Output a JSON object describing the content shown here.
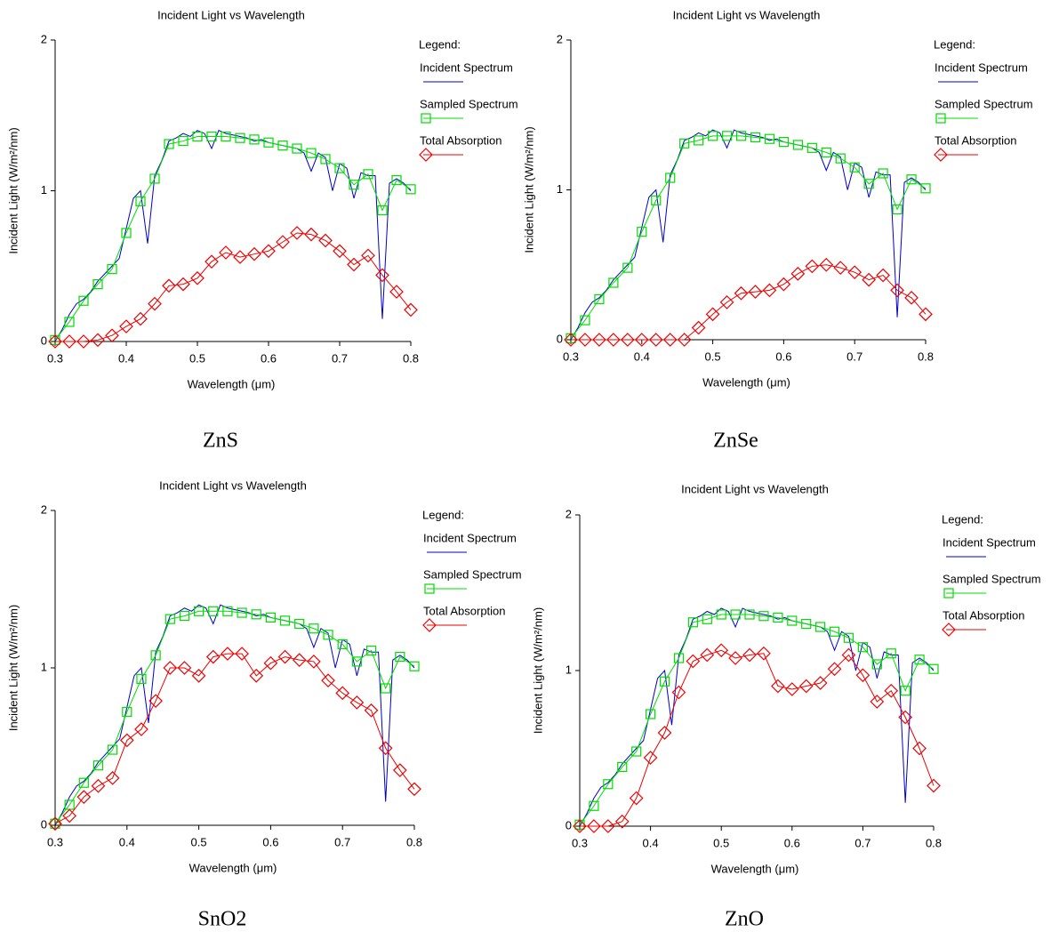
{
  "chart_data": [
    {
      "type": "line",
      "title": "Incident Light vs Wavelength",
      "xlabel": "Wavelength (μm)",
      "ylabel": "Incident Light (W/m²/nm)",
      "legend_title": "Legend:",
      "caption": "ZnS",
      "xlim": [
        0.3,
        0.8
      ],
      "xticks": [
        0.3,
        0.4,
        0.5,
        0.6,
        0.7,
        0.8
      ],
      "ylim": [
        0,
        2
      ],
      "yticks": [
        0,
        1,
        2
      ],
      "series": [
        {
          "name": "Incident Spectrum",
          "color": "#0000cc",
          "marker": "none",
          "x": [
            0.3,
            0.31,
            0.32,
            0.33,
            0.34,
            0.35,
            0.36,
            0.37,
            0.38,
            0.39,
            0.4,
            0.41,
            0.42,
            0.43,
            0.44,
            0.45,
            0.46,
            0.47,
            0.48,
            0.49,
            0.5,
            0.51,
            0.52,
            0.53,
            0.54,
            0.55,
            0.56,
            0.57,
            0.58,
            0.59,
            0.6,
            0.61,
            0.62,
            0.63,
            0.64,
            0.65,
            0.66,
            0.67,
            0.68,
            0.69,
            0.7,
            0.71,
            0.72,
            0.73,
            0.74,
            0.75,
            0.76,
            0.77,
            0.78,
            0.79,
            0.8
          ],
          "values": [
            0.0,
            0.08,
            0.18,
            0.25,
            0.28,
            0.33,
            0.4,
            0.45,
            0.5,
            0.55,
            0.75,
            0.95,
            1.0,
            0.65,
            1.1,
            1.2,
            1.33,
            1.35,
            1.38,
            1.36,
            1.4,
            1.38,
            1.28,
            1.4,
            1.38,
            1.37,
            1.36,
            1.35,
            1.33,
            1.34,
            1.32,
            1.31,
            1.3,
            1.29,
            1.28,
            1.25,
            1.13,
            1.25,
            1.22,
            1.0,
            1.18,
            1.15,
            0.95,
            1.12,
            1.1,
            1.1,
            0.15,
            1.05,
            1.08,
            1.05,
            1.0
          ]
        },
        {
          "name": "Sampled Spectrum",
          "color": "#00dd00",
          "marker": "square",
          "x": [
            0.3,
            0.32,
            0.34,
            0.36,
            0.38,
            0.4,
            0.42,
            0.44,
            0.46,
            0.48,
            0.5,
            0.52,
            0.54,
            0.56,
            0.58,
            0.6,
            0.62,
            0.64,
            0.66,
            0.68,
            0.7,
            0.72,
            0.74,
            0.76,
            0.78,
            0.8
          ],
          "values": [
            0.01,
            0.13,
            0.27,
            0.38,
            0.48,
            0.72,
            0.93,
            1.08,
            1.31,
            1.33,
            1.36,
            1.36,
            1.36,
            1.35,
            1.34,
            1.32,
            1.3,
            1.28,
            1.25,
            1.21,
            1.15,
            1.04,
            1.11,
            0.87,
            1.07,
            1.01
          ]
        },
        {
          "name": "Total Absorption",
          "color": "#ee0000",
          "marker": "diamond",
          "x": [
            0.3,
            0.32,
            0.34,
            0.36,
            0.38,
            0.4,
            0.42,
            0.44,
            0.46,
            0.48,
            0.5,
            0.52,
            0.54,
            0.56,
            0.58,
            0.6,
            0.62,
            0.64,
            0.66,
            0.68,
            0.7,
            0.72,
            0.74,
            0.76,
            0.78,
            0.8
          ],
          "values": [
            0,
            0,
            0,
            0.01,
            0.04,
            0.1,
            0.15,
            0.25,
            0.37,
            0.38,
            0.42,
            0.53,
            0.59,
            0.56,
            0.58,
            0.6,
            0.66,
            0.72,
            0.71,
            0.67,
            0.6,
            0.51,
            0.57,
            0.44,
            0.33,
            0.21
          ]
        }
      ]
    },
    {
      "type": "line",
      "title": "Incident Light vs Wavelength",
      "xlabel": "Wavelength (μm)",
      "ylabel": "Incident Light (W/m²/nm)",
      "legend_title": "Legend:",
      "caption": "ZnSe",
      "xlim": [
        0.3,
        0.8
      ],
      "xticks": [
        0.3,
        0.4,
        0.5,
        0.6,
        0.7,
        0.8
      ],
      "ylim": [
        0,
        2
      ],
      "yticks": [
        0,
        1,
        2
      ],
      "series": [
        {
          "name": "Incident Spectrum",
          "color": "#0000cc",
          "marker": "none",
          "x": [
            0.3,
            0.31,
            0.32,
            0.33,
            0.34,
            0.35,
            0.36,
            0.37,
            0.38,
            0.39,
            0.4,
            0.41,
            0.42,
            0.43,
            0.44,
            0.45,
            0.46,
            0.47,
            0.48,
            0.49,
            0.5,
            0.51,
            0.52,
            0.53,
            0.54,
            0.55,
            0.56,
            0.57,
            0.58,
            0.59,
            0.6,
            0.61,
            0.62,
            0.63,
            0.64,
            0.65,
            0.66,
            0.67,
            0.68,
            0.69,
            0.7,
            0.71,
            0.72,
            0.73,
            0.74,
            0.75,
            0.76,
            0.77,
            0.78,
            0.79,
            0.8
          ],
          "values": [
            0.0,
            0.08,
            0.18,
            0.25,
            0.28,
            0.33,
            0.4,
            0.45,
            0.5,
            0.55,
            0.75,
            0.95,
            1.0,
            0.65,
            1.1,
            1.2,
            1.33,
            1.35,
            1.38,
            1.36,
            1.4,
            1.38,
            1.28,
            1.4,
            1.38,
            1.37,
            1.36,
            1.35,
            1.33,
            1.34,
            1.32,
            1.31,
            1.3,
            1.29,
            1.28,
            1.25,
            1.13,
            1.25,
            1.22,
            1.0,
            1.18,
            1.15,
            0.95,
            1.12,
            1.1,
            1.1,
            0.15,
            1.05,
            1.08,
            1.05,
            1.0
          ]
        },
        {
          "name": "Sampled Spectrum",
          "color": "#00dd00",
          "marker": "square",
          "x": [
            0.3,
            0.32,
            0.34,
            0.36,
            0.38,
            0.4,
            0.42,
            0.44,
            0.46,
            0.48,
            0.5,
            0.52,
            0.54,
            0.56,
            0.58,
            0.6,
            0.62,
            0.64,
            0.66,
            0.68,
            0.7,
            0.72,
            0.74,
            0.76,
            0.78,
            0.8
          ],
          "values": [
            0.01,
            0.13,
            0.27,
            0.38,
            0.48,
            0.72,
            0.93,
            1.08,
            1.31,
            1.33,
            1.36,
            1.36,
            1.36,
            1.35,
            1.34,
            1.32,
            1.3,
            1.28,
            1.25,
            1.21,
            1.15,
            1.04,
            1.11,
            0.87,
            1.07,
            1.01
          ]
        },
        {
          "name": "Total Absorption",
          "color": "#ee0000",
          "marker": "diamond",
          "x": [
            0.3,
            0.32,
            0.34,
            0.36,
            0.38,
            0.4,
            0.42,
            0.44,
            0.46,
            0.48,
            0.5,
            0.52,
            0.54,
            0.56,
            0.58,
            0.6,
            0.62,
            0.64,
            0.66,
            0.68,
            0.7,
            0.72,
            0.74,
            0.76,
            0.78,
            0.8
          ],
          "values": [
            0,
            0,
            0,
            0,
            0,
            0,
            0,
            0,
            0,
            0.08,
            0.17,
            0.25,
            0.31,
            0.32,
            0.33,
            0.37,
            0.44,
            0.49,
            0.5,
            0.48,
            0.45,
            0.4,
            0.43,
            0.33,
            0.28,
            0.17
          ]
        }
      ]
    },
    {
      "type": "line",
      "title": "Incident Light vs Wavelength",
      "xlabel": "Wavelength (μm)",
      "ylabel": "Incident Light (W/m²/nm)",
      "legend_title": "Legend:",
      "caption": "SnO2",
      "xlim": [
        0.3,
        0.8
      ],
      "xticks": [
        0.3,
        0.4,
        0.5,
        0.6,
        0.7,
        0.8
      ],
      "ylim": [
        0,
        2
      ],
      "yticks": [
        0,
        1,
        2
      ],
      "series": [
        {
          "name": "Incident Spectrum",
          "color": "#0000cc",
          "marker": "none",
          "x": [
            0.3,
            0.31,
            0.32,
            0.33,
            0.34,
            0.35,
            0.36,
            0.37,
            0.38,
            0.39,
            0.4,
            0.41,
            0.42,
            0.43,
            0.44,
            0.45,
            0.46,
            0.47,
            0.48,
            0.49,
            0.5,
            0.51,
            0.52,
            0.53,
            0.54,
            0.55,
            0.56,
            0.57,
            0.58,
            0.59,
            0.6,
            0.61,
            0.62,
            0.63,
            0.64,
            0.65,
            0.66,
            0.67,
            0.68,
            0.69,
            0.7,
            0.71,
            0.72,
            0.73,
            0.74,
            0.75,
            0.76,
            0.77,
            0.78,
            0.79,
            0.8
          ],
          "values": [
            0.0,
            0.08,
            0.18,
            0.25,
            0.28,
            0.33,
            0.4,
            0.45,
            0.5,
            0.55,
            0.75,
            0.95,
            1.0,
            0.65,
            1.1,
            1.2,
            1.33,
            1.35,
            1.38,
            1.36,
            1.4,
            1.38,
            1.28,
            1.4,
            1.38,
            1.37,
            1.36,
            1.35,
            1.33,
            1.34,
            1.32,
            1.31,
            1.3,
            1.29,
            1.28,
            1.25,
            1.13,
            1.25,
            1.22,
            1.0,
            1.18,
            1.15,
            0.95,
            1.12,
            1.1,
            1.1,
            0.15,
            1.05,
            1.08,
            1.05,
            1.0
          ]
        },
        {
          "name": "Sampled Spectrum",
          "color": "#00dd00",
          "marker": "square",
          "x": [
            0.3,
            0.32,
            0.34,
            0.36,
            0.38,
            0.4,
            0.42,
            0.44,
            0.46,
            0.48,
            0.5,
            0.52,
            0.54,
            0.56,
            0.58,
            0.6,
            0.62,
            0.64,
            0.66,
            0.68,
            0.7,
            0.72,
            0.74,
            0.76,
            0.78,
            0.8
          ],
          "values": [
            0.01,
            0.13,
            0.27,
            0.38,
            0.48,
            0.72,
            0.93,
            1.08,
            1.31,
            1.33,
            1.36,
            1.36,
            1.36,
            1.35,
            1.34,
            1.32,
            1.3,
            1.28,
            1.25,
            1.21,
            1.15,
            1.04,
            1.11,
            0.87,
            1.07,
            1.01
          ]
        },
        {
          "name": "Total Absorption",
          "color": "#ee0000",
          "marker": "diamond",
          "x": [
            0.3,
            0.32,
            0.34,
            0.36,
            0.38,
            0.4,
            0.42,
            0.44,
            0.46,
            0.48,
            0.5,
            0.52,
            0.54,
            0.56,
            0.58,
            0.6,
            0.62,
            0.64,
            0.66,
            0.68,
            0.7,
            0.72,
            0.74,
            0.76,
            0.78,
            0.8
          ],
          "values": [
            0.01,
            0.06,
            0.18,
            0.25,
            0.3,
            0.54,
            0.61,
            0.79,
            1.0,
            1.0,
            0.95,
            1.07,
            1.09,
            1.09,
            0.95,
            1.03,
            1.07,
            1.05,
            1.04,
            0.92,
            0.84,
            0.78,
            0.73,
            0.49,
            0.35,
            0.23
          ]
        }
      ]
    },
    {
      "type": "line",
      "title": "Incident Light vs Wavelength",
      "xlabel": "Wavelength (μm)",
      "ylabel": "Incident Light (W/m²/nm)",
      "legend_title": "Legend:",
      "caption": "ZnO",
      "xlim": [
        0.3,
        0.8
      ],
      "xticks": [
        0.3,
        0.4,
        0.5,
        0.6,
        0.7,
        0.8
      ],
      "ylim": [
        0,
        2
      ],
      "yticks": [
        0,
        1,
        2
      ],
      "series": [
        {
          "name": "Incident Spectrum",
          "color": "#0000cc",
          "marker": "none",
          "x": [
            0.3,
            0.31,
            0.32,
            0.33,
            0.34,
            0.35,
            0.36,
            0.37,
            0.38,
            0.39,
            0.4,
            0.41,
            0.42,
            0.43,
            0.44,
            0.45,
            0.46,
            0.47,
            0.48,
            0.49,
            0.5,
            0.51,
            0.52,
            0.53,
            0.54,
            0.55,
            0.56,
            0.57,
            0.58,
            0.59,
            0.6,
            0.61,
            0.62,
            0.63,
            0.64,
            0.65,
            0.66,
            0.67,
            0.68,
            0.69,
            0.7,
            0.71,
            0.72,
            0.73,
            0.74,
            0.75,
            0.76,
            0.77,
            0.78,
            0.79,
            0.8
          ],
          "values": [
            0.0,
            0.08,
            0.18,
            0.25,
            0.28,
            0.33,
            0.4,
            0.45,
            0.5,
            0.55,
            0.75,
            0.95,
            1.0,
            0.65,
            1.1,
            1.2,
            1.33,
            1.35,
            1.38,
            1.36,
            1.4,
            1.38,
            1.28,
            1.4,
            1.38,
            1.37,
            1.36,
            1.35,
            1.33,
            1.34,
            1.32,
            1.31,
            1.3,
            1.29,
            1.28,
            1.25,
            1.13,
            1.25,
            1.22,
            1.0,
            1.18,
            1.15,
            0.95,
            1.12,
            1.1,
            1.1,
            0.15,
            1.05,
            1.08,
            1.05,
            1.0
          ]
        },
        {
          "name": "Sampled Spectrum",
          "color": "#00dd00",
          "marker": "square",
          "x": [
            0.3,
            0.32,
            0.34,
            0.36,
            0.38,
            0.4,
            0.42,
            0.44,
            0.46,
            0.48,
            0.5,
            0.52,
            0.54,
            0.56,
            0.58,
            0.6,
            0.62,
            0.64,
            0.66,
            0.68,
            0.7,
            0.72,
            0.74,
            0.76,
            0.78,
            0.8
          ],
          "values": [
            0.01,
            0.13,
            0.27,
            0.38,
            0.48,
            0.72,
            0.93,
            1.08,
            1.31,
            1.33,
            1.36,
            1.36,
            1.36,
            1.35,
            1.34,
            1.32,
            1.3,
            1.28,
            1.25,
            1.21,
            1.15,
            1.04,
            1.11,
            0.87,
            1.07,
            1.01
          ]
        },
        {
          "name": "Total Absorption",
          "color": "#ee0000",
          "marker": "diamond",
          "x": [
            0.3,
            0.32,
            0.34,
            0.36,
            0.38,
            0.4,
            0.42,
            0.44,
            0.46,
            0.48,
            0.5,
            0.52,
            0.54,
            0.56,
            0.58,
            0.6,
            0.62,
            0.64,
            0.66,
            0.68,
            0.7,
            0.72,
            0.74,
            0.76,
            0.78,
            0.8
          ],
          "values": [
            0,
            0,
            0,
            0.03,
            0.18,
            0.44,
            0.6,
            0.86,
            1.06,
            1.1,
            1.13,
            1.08,
            1.1,
            1.11,
            0.9,
            0.88,
            0.9,
            0.92,
            1.01,
            1.1,
            0.97,
            0.8,
            0.87,
            0.7,
            0.5,
            0.26
          ]
        }
      ]
    }
  ]
}
